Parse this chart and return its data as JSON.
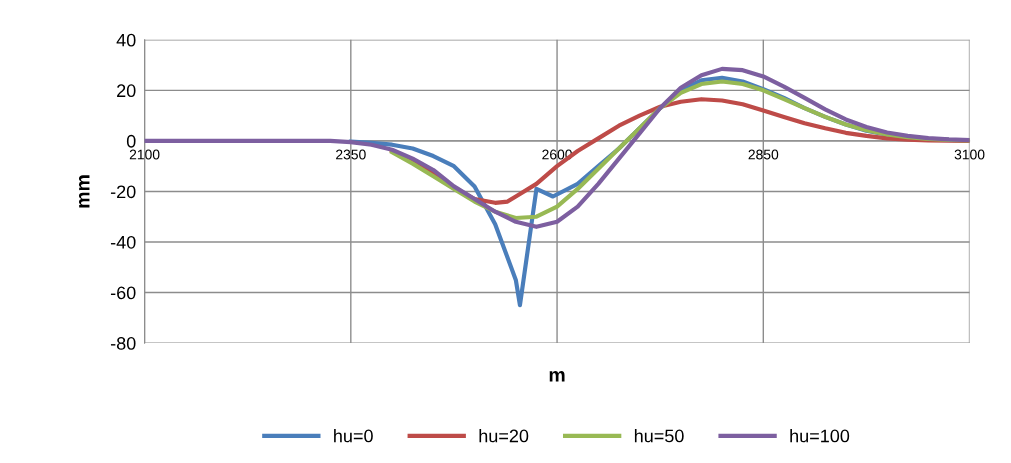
{
  "chart_data": {
    "type": "line",
    "xlabel": "m",
    "ylabel": "mm",
    "xlim": [
      2100,
      3100
    ],
    "xticks": [
      2100,
      2350,
      2600,
      2850,
      3100
    ],
    "ylim": [
      -80,
      40
    ],
    "yticks": [
      -80,
      -60,
      -40,
      -20,
      0,
      20,
      40
    ],
    "grid": true,
    "legend": "bottom",
    "marker": "none",
    "line_style": "solid",
    "series": [
      {
        "name": "hu=0",
        "color": "#4a7ebb",
        "x": [
          2350,
          2375,
          2400,
          2425,
          2450,
          2475,
          2500,
          2525,
          2550,
          2555,
          2575,
          2595,
          2625,
          2650,
          2675,
          2700,
          2725,
          2750,
          2775,
          2800,
          2825,
          2850,
          2875,
          2900,
          2925,
          2950,
          2975,
          3000,
          3025,
          3050,
          3075,
          3100
        ],
        "values": [
          -0.3,
          -0.8,
          -1.5,
          -3,
          -6,
          -10,
          -18,
          -33,
          -55,
          -65,
          -19,
          -22,
          -17,
          -10,
          -3,
          5,
          13,
          20,
          24,
          25,
          23.5,
          20.5,
          17,
          13,
          9.5,
          6.5,
          4,
          2.5,
          1.5,
          0.8,
          0.4,
          0.2
        ]
      },
      {
        "name": "hu=20",
        "color": "#be4b48",
        "x": [
          2400,
          2425,
          2450,
          2475,
          2500,
          2525,
          2540,
          2550,
          2575,
          2600,
          2625,
          2650,
          2675,
          2700,
          2725,
          2750,
          2775,
          2800,
          2825,
          2850,
          2875,
          2900,
          2925,
          2950,
          2975,
          3000,
          3025,
          3050,
          3075,
          3100
        ],
        "values": [
          -4,
          -8,
          -13,
          -18.5,
          -23,
          -24.5,
          -24,
          -22,
          -17,
          -10,
          -4,
          1,
          6,
          10,
          13.5,
          15.5,
          16.5,
          16,
          14.5,
          12,
          9.5,
          7,
          5,
          3.2,
          2,
          1,
          0.5,
          0.2,
          0.1,
          0
        ]
      },
      {
        "name": "hu=50",
        "color": "#98b954",
        "x": [
          2400,
          2425,
          2450,
          2475,
          2500,
          2525,
          2550,
          2575,
          2600,
          2625,
          2650,
          2675,
          2700,
          2725,
          2750,
          2775,
          2800,
          2825,
          2850,
          2875,
          2900,
          2925,
          2950,
          2975,
          3000,
          3025,
          3050,
          3075,
          3100
        ],
        "values": [
          -4.5,
          -9,
          -14,
          -19,
          -24,
          -28,
          -30.5,
          -30,
          -26,
          -19,
          -11,
          -3,
          5,
          13,
          19,
          22.5,
          23.5,
          22.5,
          20,
          16.5,
          13,
          9.5,
          6.5,
          4.2,
          2.6,
          1.5,
          0.8,
          0.4,
          0.2
        ]
      },
      {
        "name": "hu=100",
        "color": "#7d5fa0",
        "x": [
          2100,
          2150,
          2200,
          2250,
          2300,
          2325,
          2350,
          2375,
          2400,
          2425,
          2450,
          2475,
          2500,
          2525,
          2550,
          2575,
          2600,
          2625,
          2650,
          2675,
          2700,
          2725,
          2750,
          2775,
          2800,
          2825,
          2850,
          2875,
          2900,
          2925,
          2950,
          2975,
          3000,
          3025,
          3050,
          3075,
          3100
        ],
        "values": [
          0,
          0,
          0,
          0,
          0,
          0,
          -0.5,
          -1.5,
          -3.5,
          -7,
          -11.5,
          -18,
          -23,
          -28,
          -32,
          -34,
          -32,
          -26,
          -17,
          -7,
          3,
          13,
          21,
          26,
          28.5,
          28,
          25.5,
          21.5,
          17,
          12.5,
          8.5,
          5.5,
          3.3,
          2,
          1.1,
          0.6,
          0.3
        ]
      }
    ]
  }
}
